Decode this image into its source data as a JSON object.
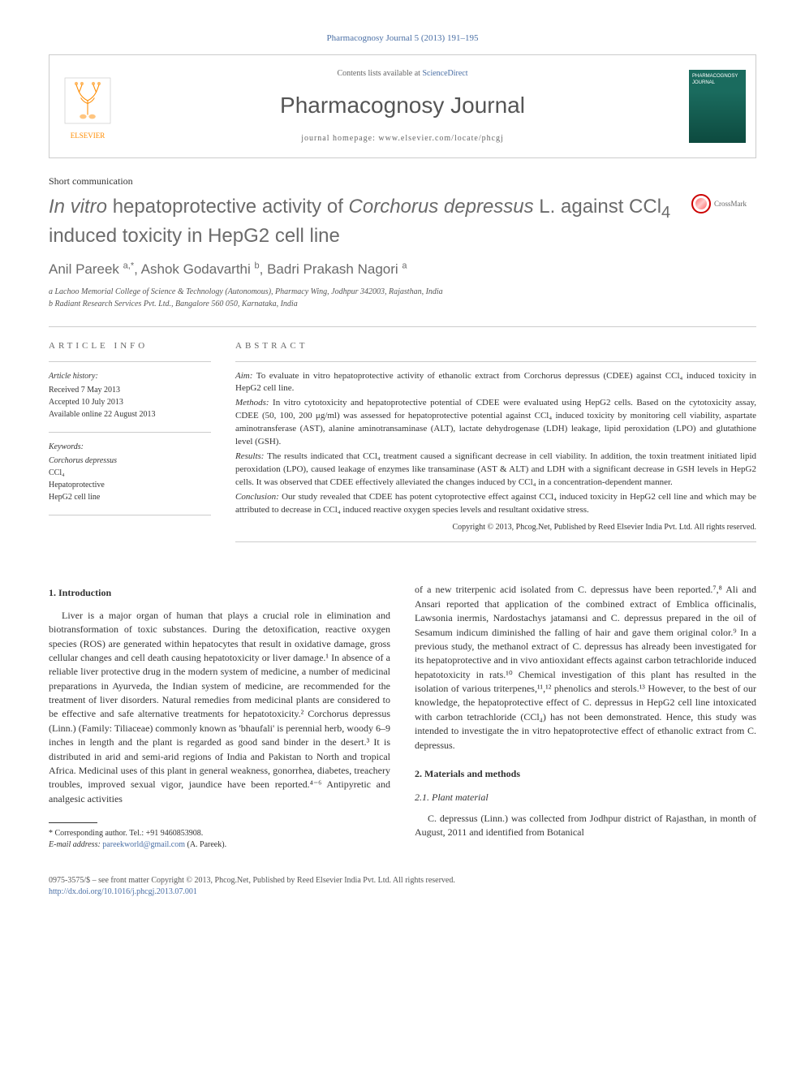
{
  "citation": "Pharmacognosy Journal 5 (2013) 191–195",
  "header": {
    "publisher": "ELSEVIER",
    "contents_prefix": "Contents lists available at ",
    "contents_link": "ScienceDirect",
    "journal_name": "Pharmacognosy Journal",
    "homepage_label": "journal homepage: ",
    "homepage_url": "www.elsevier.com/locate/phcgj",
    "cover_text": "PHARMACOGNOSY JOURNAL"
  },
  "article_type": "Short communication",
  "title_parts": {
    "pre": "In vitro",
    "mid1": " hepatoprotective activity of ",
    "species": "Corchorus depressus",
    "mid2": " L. against CCl",
    "sub1": "4",
    "end": " induced toxicity in HepG2 cell line"
  },
  "crossmark": "CrossMark",
  "authors_html": "Anil Pareek <sup>a,*</sup>, Ashok Godavarthi <sup>b</sup>, Badri Prakash Nagori <sup>a</sup>",
  "affiliations": {
    "a": "a Lachoo Memorial College of Science & Technology (Autonomous), Pharmacy Wing, Jodhpur 342003, Rajasthan, India",
    "b": "b Radiant Research Services Pvt. Ltd., Bangalore 560 050, Karnataka, India"
  },
  "article_info": {
    "heading": "ARTICLE INFO",
    "history_label": "Article history:",
    "received": "Received 7 May 2013",
    "accepted": "Accepted 10 July 2013",
    "online": "Available online 22 August 2013",
    "keywords_label": "Keywords:",
    "keywords": [
      "Corchorus depressus",
      "CCl₄",
      "Hepatoprotective",
      "HepG2 cell line"
    ]
  },
  "abstract": {
    "heading": "ABSTRACT",
    "aim_label": "Aim:",
    "aim": " To evaluate in vitro hepatoprotective activity of ethanolic extract from Corchorus depressus (CDEE) against CCl₄ induced toxicity in HepG2 cell line.",
    "methods_label": "Methods:",
    "methods": " In vitro cytotoxicity and hepatoprotective potential of CDEE were evaluated using HepG2 cells. Based on the cytotoxicity assay, CDEE (50, 100, 200 μg/ml) was assessed for hepatoprotective potential against CCl₄ induced toxicity by monitoring cell viability, aspartate aminotransferase (AST), alanine aminotransaminase (ALT), lactate dehydrogenase (LDH) leakage, lipid peroxidation (LPO) and glutathione level (GSH).",
    "results_label": "Results:",
    "results": " The results indicated that CCl₄ treatment caused a significant decrease in cell viability. In addition, the toxin treatment initiated lipid peroxidation (LPO), caused leakage of enzymes like transaminase (AST & ALT) and LDH with a significant decrease in GSH levels in HepG2 cells. It was observed that CDEE effectively alleviated the changes induced by CCl₄ in a concentration-dependent manner.",
    "conclusion_label": "Conclusion:",
    "conclusion": " Our study revealed that CDEE has potent cytoprotective effect against CCl₄ induced toxicity in HepG2 cell line and which may be attributed to decrease in CCl₄ induced reactive oxygen species levels and resultant oxidative stress.",
    "copyright": "Copyright © 2013, Phcog.Net, Published by Reed Elsevier India Pvt. Ltd. All rights reserved."
  },
  "sections": {
    "s1_heading": "1. Introduction",
    "s1_para": "Liver is a major organ of human that plays a crucial role in elimination and biotransformation of toxic substances. During the detoxification, reactive oxygen species (ROS) are generated within hepatocytes that result in oxidative damage, gross cellular changes and cell death causing hepatotoxicity or liver damage.¹ In absence of a reliable liver protective drug in the modern system of medicine, a number of medicinal preparations in Ayurveda, the Indian system of medicine, are recommended for the treatment of liver disorders. Natural remedies from medicinal plants are considered to be effective and safe alternative treatments for hepatotoxicity.² Corchorus depressus (Linn.) (Family: Tiliaceae) commonly known as 'bhaufali' is perennial herb, woody 6–9 inches in length and the plant is regarded as good sand binder in the desert.³ It is distributed in arid and semi-arid regions of India and Pakistan to North and tropical Africa. Medicinal uses of this plant in general weakness, gonorrhea, diabetes, treachery troubles, improved sexual vigor, jaundice have been reported.⁴⁻⁶ Antipyretic and analgesic activities",
    "s1_para2": "of a new triterpenic acid isolated from C. depressus have been reported.⁷,⁸ Ali and Ansari reported that application of the combined extract of Emblica officinalis, Lawsonia inermis, Nardostachys jatamansi and C. depressus prepared in the oil of Sesamum indicum diminished the falling of hair and gave them original color.⁹ In a previous study, the methanol extract of C. depressus has already been investigated for its hepatoprotective and in vivo antioxidant effects against carbon tetrachloride induced hepatotoxicity in rats.¹⁰ Chemical investigation of this plant has resulted in the isolation of various triterpenes,¹¹,¹² phenolics and sterols.¹³ However, to the best of our knowledge, the hepatoprotective effect of C. depressus in HepG2 cell line intoxicated with carbon tetrachloride (CCl₄) has not been demonstrated. Hence, this study was intended to investigate the in vitro hepatoprotective effect of ethanolic extract from C. depressus.",
    "s2_heading": "2. Materials and methods",
    "s2_1_heading": "2.1. Plant material",
    "s2_1_para": "C. depressus (Linn.) was collected from Jodhpur district of Rajasthan, in month of August, 2011 and identified from Botanical"
  },
  "footnotes": {
    "corr": "* Corresponding author. Tel.: +91 9460853908.",
    "email_label": "E-mail address: ",
    "email": "pareekworld@gmail.com",
    "email_name": " (A. Pareek)."
  },
  "bottom": {
    "issn": "0975-3575/$ – see front matter Copyright © 2013, Phcog.Net, Published by Reed Elsevier India Pvt. Ltd. All rights reserved.",
    "doi": "http://dx.doi.org/10.1016/j.phcgj.2013.07.001"
  },
  "colors": {
    "link": "#4a6fa5",
    "publisher": "#ff8c00",
    "heading_gray": "#6b6b6b",
    "cover_bg": "#1a6b5e"
  },
  "typography": {
    "body_font": "Georgia, Times New Roman, serif",
    "title_fontsize": 24,
    "journal_name_fontsize": 28,
    "body_fontsize": 12,
    "abstract_fontsize": 11
  }
}
